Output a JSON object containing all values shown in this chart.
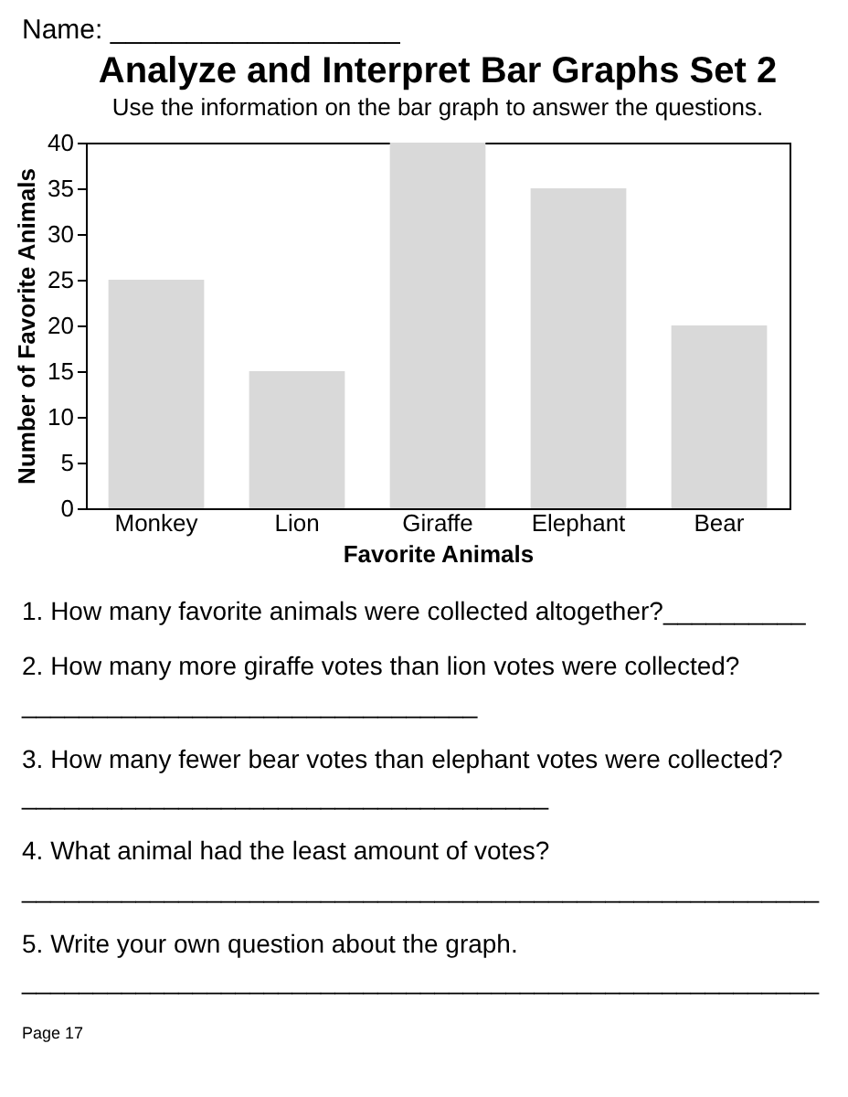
{
  "chart_data": {
    "type": "bar",
    "title": "Analyze and Interpret Bar Graphs Set 2",
    "subtitle": "Use the information on the bar graph to answer the questions.",
    "xlabel": "Favorite Animals",
    "ylabel": "Number of Favorite Animals",
    "categories": [
      "Monkey",
      "Lion",
      "Giraffe",
      "Elephant",
      "Bear"
    ],
    "values": [
      25,
      15,
      40,
      35,
      20
    ],
    "color": "#d9d9d9",
    "ylim": [
      0,
      40
    ],
    "yticks": [
      0,
      5,
      10,
      15,
      20,
      25,
      30,
      35,
      40
    ],
    "grid": false,
    "annotations": [
      "Name: ___________________",
      "1. How many favorite animals were collected altogether?__________",
      "2. How many more giraffe votes than lion votes were collected? ________________________________",
      "3. How many fewer bear votes than elephant votes were collected? _____________________________________",
      "4. What animal had the least amount of votes? ________________________________________________________",
      "5. Write your own question about the graph. ________________________________________________________",
      "Page 17"
    ]
  }
}
